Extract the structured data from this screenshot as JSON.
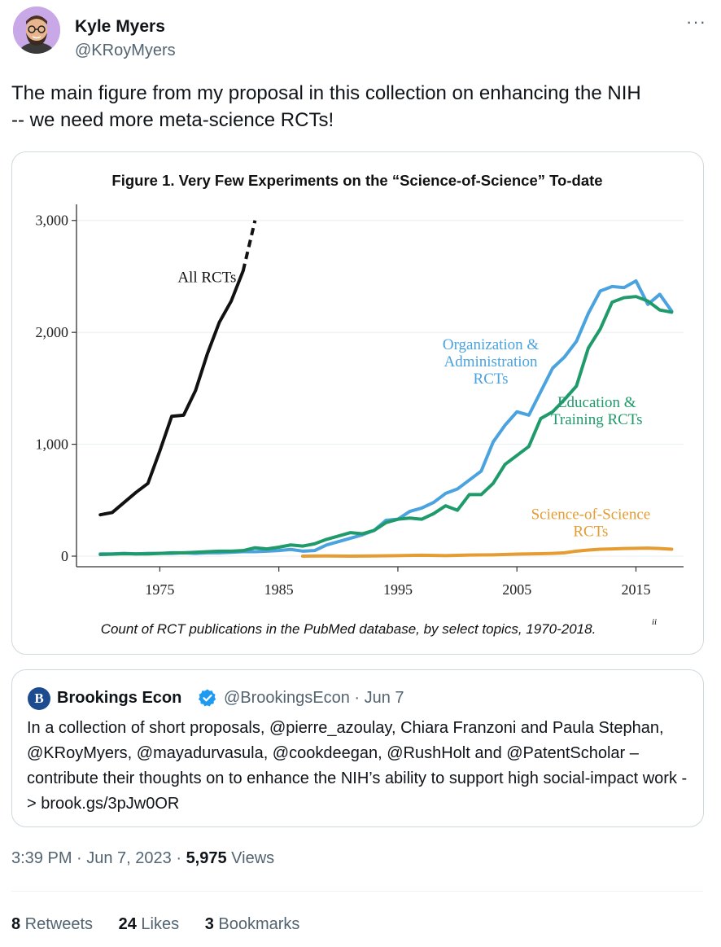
{
  "author": {
    "name": "Kyle Myers",
    "handle": "@KRoyMyers"
  },
  "more_glyph": "···",
  "tweet_text": "The main figure from my proposal in this collection on enhancing the NIH\n-- we need more meta-science RCTs!",
  "chart_data": {
    "type": "line",
    "title": "Figure 1. Very Few Experiments on the “Science-of-Science” To-date",
    "caption": "Count of RCT publications in the PubMed database, by select topics, 1970-2018.",
    "caption_sup": "ii",
    "xlim": [
      1968,
      2019
    ],
    "ylim": [
      -80,
      3100
    ],
    "xticks": [
      1975,
      1985,
      1995,
      2005,
      2015
    ],
    "yticks": [
      0,
      1000,
      2000,
      3000
    ],
    "ytick_labels": [
      "0",
      "1,000",
      "2,000",
      "3,000"
    ],
    "grid": true,
    "series": [
      {
        "name": "All RCTs",
        "label_lines": [
          "All RCTs"
        ],
        "color": "#111111",
        "x": [
          1970,
          1971,
          1972,
          1973,
          1974,
          1975,
          1976,
          1977,
          1978,
          1979,
          1980,
          1981,
          1982,
          1983
        ],
        "y": [
          370,
          390,
          480,
          570,
          650,
          940,
          1250,
          1260,
          1480,
          1810,
          2090,
          2280,
          2550,
          3000
        ],
        "dashed_from": 1982
      },
      {
        "name": "Organization & Administration RCTs",
        "label_lines": [
          "Organization &",
          "Administration",
          "RCTs"
        ],
        "color": "#4aa3df",
        "x": [
          1970,
          1971,
          1972,
          1973,
          1974,
          1975,
          1976,
          1977,
          1978,
          1979,
          1980,
          1981,
          1982,
          1983,
          1984,
          1985,
          1986,
          1987,
          1988,
          1989,
          1990,
          1991,
          1992,
          1993,
          1994,
          1995,
          1996,
          1997,
          1998,
          1999,
          2000,
          2001,
          2002,
          2003,
          2004,
          2005,
          2006,
          2007,
          2008,
          2009,
          2010,
          2011,
          2012,
          2013,
          2014,
          2015,
          2016,
          2017,
          2018
        ],
        "y": [
          20,
          20,
          25,
          20,
          25,
          25,
          25,
          30,
          25,
          30,
          30,
          35,
          40,
          40,
          45,
          50,
          60,
          45,
          50,
          100,
          130,
          160,
          190,
          230,
          320,
          330,
          400,
          430,
          480,
          560,
          600,
          680,
          760,
          1020,
          1170,
          1290,
          1260,
          1470,
          1680,
          1780,
          1920,
          2170,
          2370,
          2410,
          2400,
          2460,
          2250,
          2340,
          2190
        ]
      },
      {
        "name": "Education & Training RCTs",
        "label_lines": [
          "Education &",
          "Training RCTs"
        ],
        "color": "#1f9a6a",
        "x": [
          1970,
          1971,
          1972,
          1973,
          1974,
          1975,
          1976,
          1977,
          1978,
          1979,
          1980,
          1981,
          1982,
          1983,
          1984,
          1985,
          1986,
          1987,
          1988,
          1989,
          1990,
          1991,
          1992,
          1993,
          1994,
          1995,
          1996,
          1997,
          1998,
          1999,
          2000,
          2001,
          2002,
          2003,
          2004,
          2005,
          2006,
          2007,
          2008,
          2009,
          2010,
          2011,
          2012,
          2013,
          2014,
          2015,
          2016,
          2017,
          2018
        ],
        "y": [
          15,
          18,
          22,
          20,
          20,
          25,
          30,
          30,
          35,
          40,
          45,
          45,
          50,
          75,
          65,
          80,
          100,
          90,
          110,
          150,
          180,
          210,
          200,
          230,
          300,
          330,
          340,
          330,
          380,
          450,
          410,
          550,
          550,
          650,
          820,
          900,
          980,
          1230,
          1290,
          1400,
          1520,
          1860,
          2030,
          2270,
          2310,
          2320,
          2280,
          2200,
          2180
        ]
      },
      {
        "name": "Science-of-Science RCTs",
        "label_lines": [
          "Science-of-Science",
          "RCTs"
        ],
        "color": "#e59c32",
        "x": [
          1987,
          1989,
          1991,
          1993,
          1995,
          1997,
          1999,
          2001,
          2003,
          2005,
          2007,
          2008,
          2009,
          2010,
          2011,
          2012,
          2013,
          2014,
          2015,
          2016,
          2017,
          2018
        ],
        "y": [
          0,
          2,
          0,
          2,
          5,
          8,
          5,
          10,
          12,
          18,
          22,
          25,
          30,
          45,
          55,
          62,
          65,
          68,
          70,
          72,
          68,
          62
        ]
      }
    ]
  },
  "quote": {
    "logo_letter": "B",
    "name": "Brookings Econ",
    "handle_date": "@BrookingsEcon · Jun 7",
    "text": "In a collection of short proposals, @pierre_azoulay, Chiara Franzoni and Paula Stephan, @KRoyMyers, @mayadurvasula, @cookdeegan, @RushHolt and @PatentScholar – contribute their thoughts on to enhance the NIH’s ability to support high social-impact work -> brook.gs/3pJw0OR"
  },
  "meta": {
    "time_date": "3:39 PM · Jun 7, 2023 · ",
    "views": "5,975",
    "views_label": " Views"
  },
  "stats": {
    "retweets": "8",
    "retweets_label": " Retweets",
    "likes": "24",
    "likes_label": " Likes",
    "bookmarks": "3",
    "bookmarks_label": " Bookmarks"
  },
  "colors": {
    "secondary_text": "#536471",
    "verified": "#1d9bf0"
  }
}
